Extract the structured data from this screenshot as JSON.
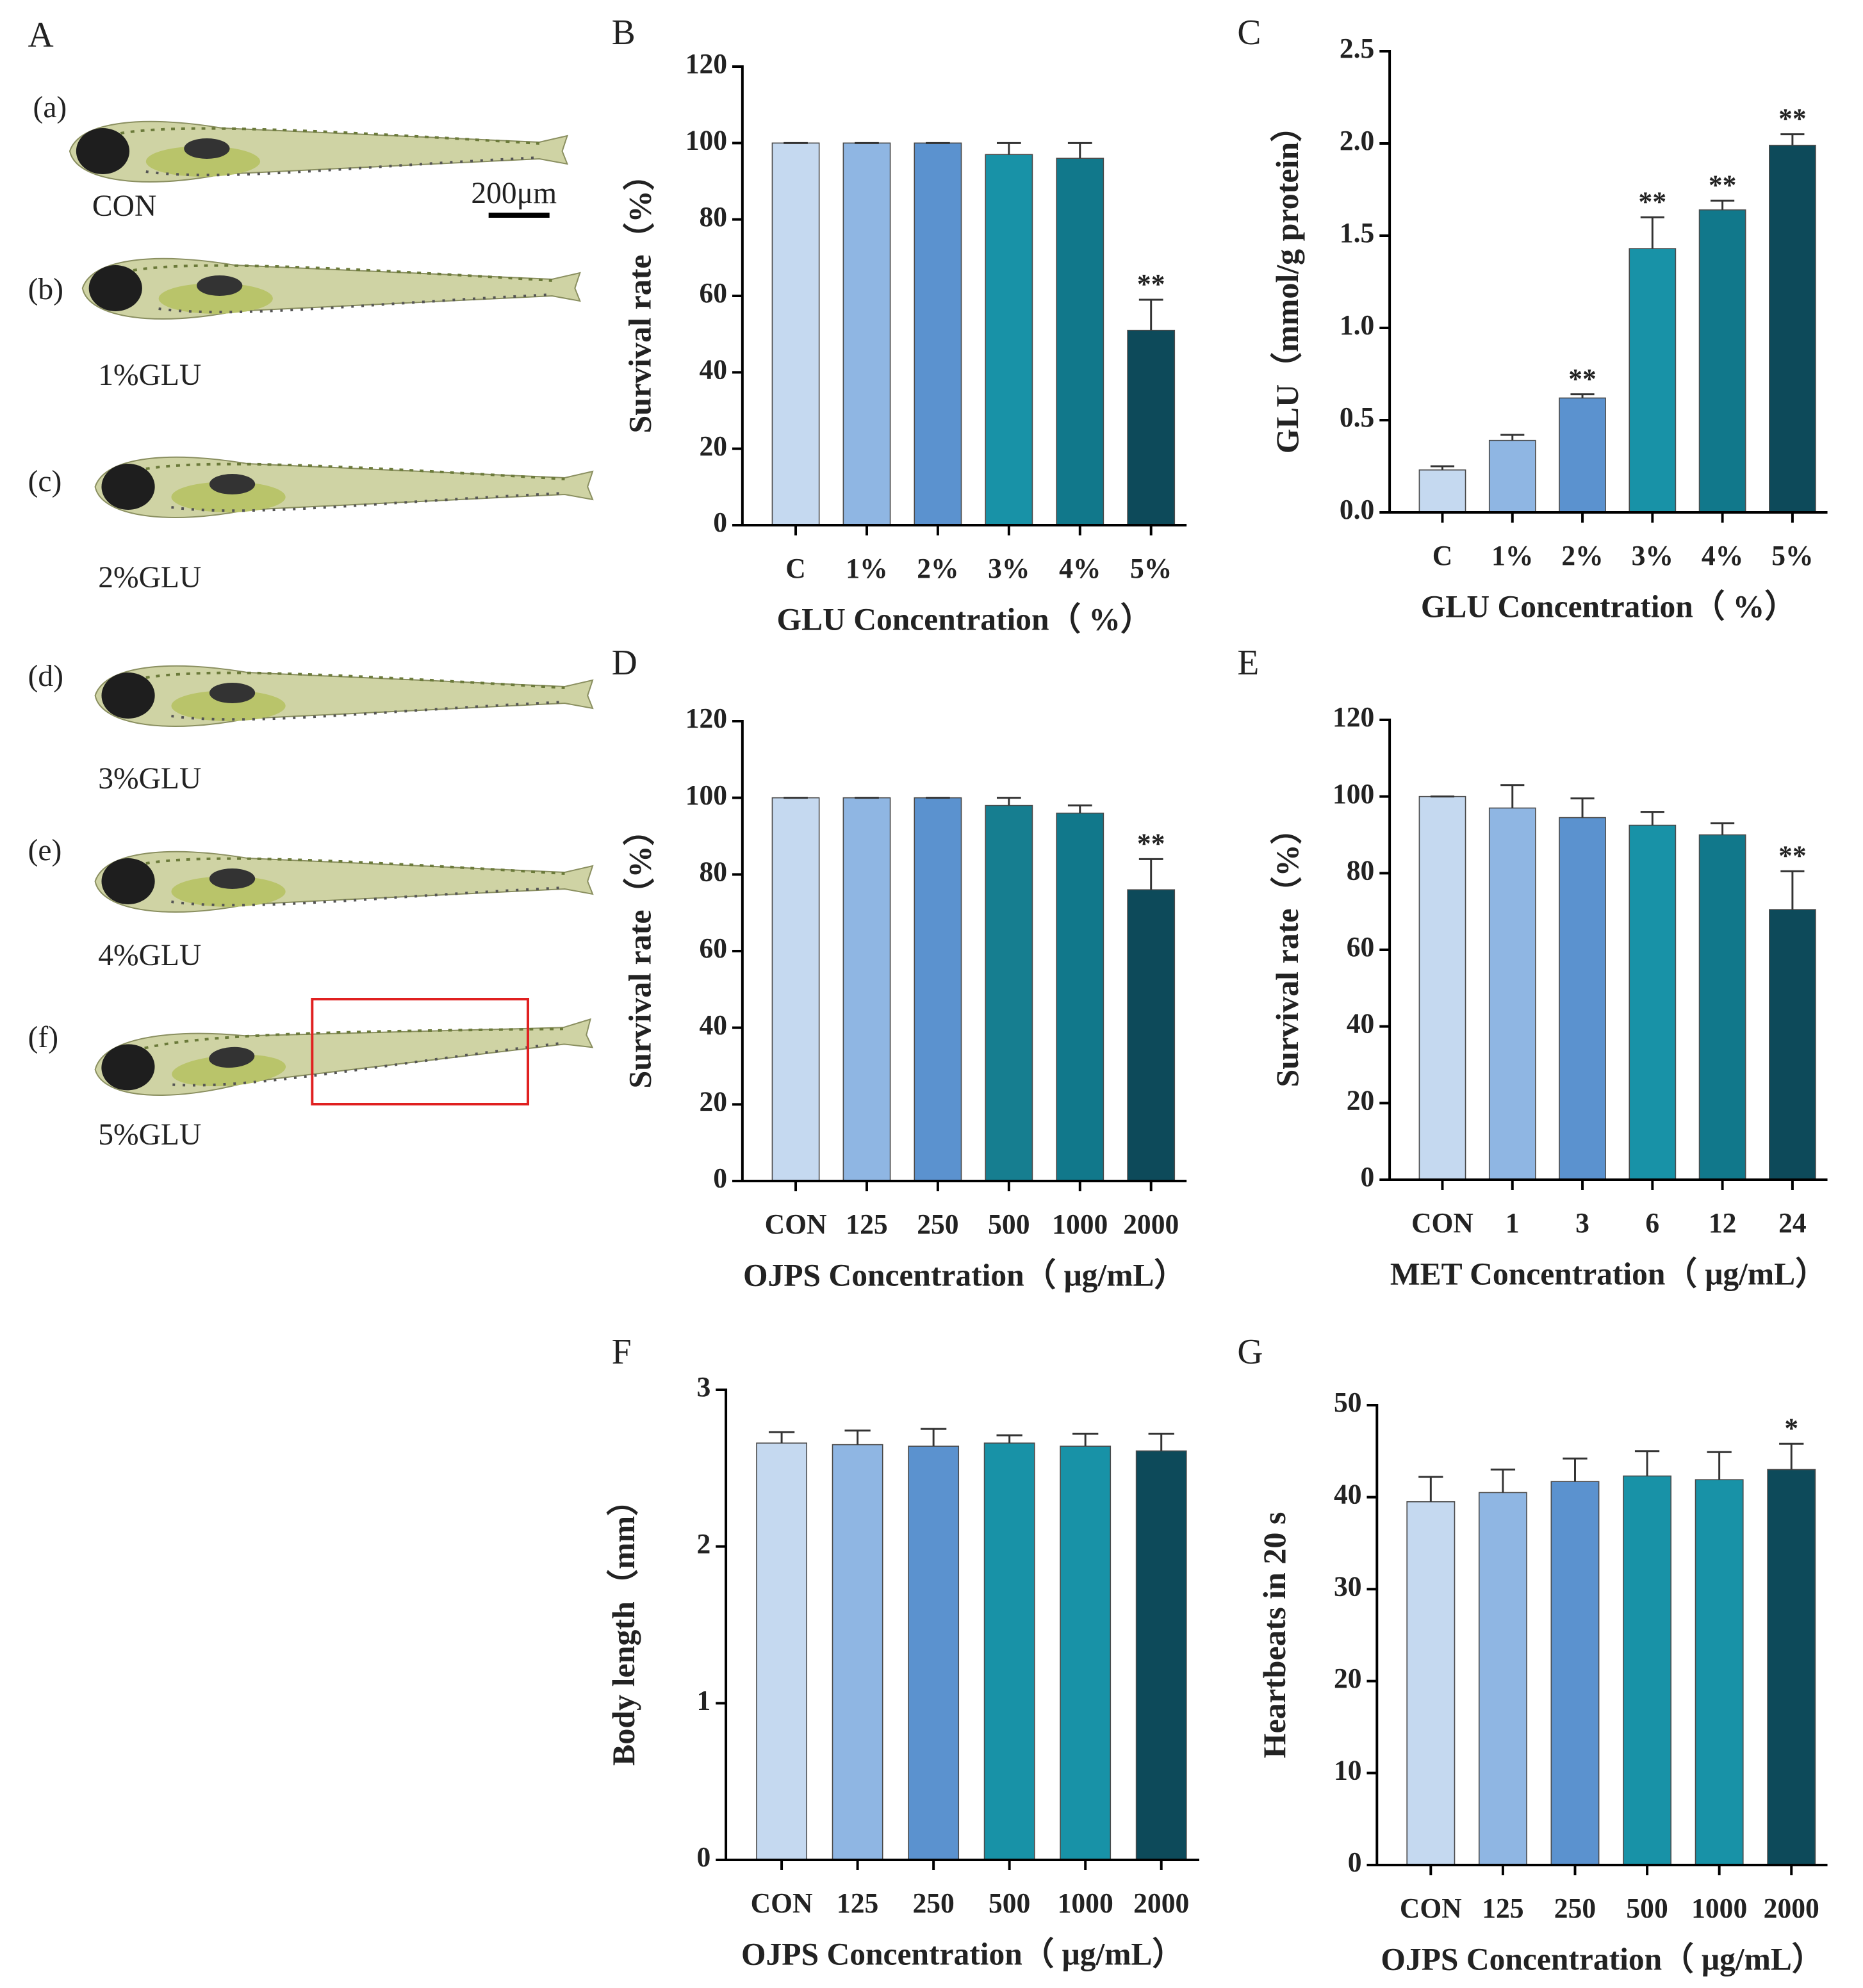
{
  "panel_a": {
    "panel": "A",
    "scale_bar": "200μm",
    "fish": [
      {
        "tag": "(a)",
        "label": "CON"
      },
      {
        "tag": "(b)",
        "label": "1%GLU"
      },
      {
        "tag": "(c)",
        "label": "2%GLU"
      },
      {
        "tag": "(d)",
        "label": "3%GLU"
      },
      {
        "tag": "(e)",
        "label": "4%GLU"
      },
      {
        "tag": "(f)",
        "label": "5%GLU"
      }
    ]
  },
  "chart_data": [
    {
      "type": "bar",
      "panel": "B",
      "y_label": "Survival rate（%）",
      "x_label": "GLU Concentration（ %）",
      "categories": [
        "C",
        "1%",
        "2%",
        "3%",
        "4%",
        "5%"
      ],
      "values": [
        100,
        100,
        100,
        97,
        96,
        51
      ],
      "errors": [
        0,
        0,
        0,
        3,
        4,
        8
      ],
      "annotations": [
        null,
        null,
        null,
        null,
        null,
        "**"
      ],
      "colors": [
        "#c5d9f0",
        "#8fb6e3",
        "#5b92cf",
        "#1892a7",
        "#11788b",
        "#0d4a5a"
      ],
      "ylim": [
        0,
        120
      ],
      "yticks": [
        0,
        20,
        40,
        60,
        80,
        100,
        120
      ]
    },
    {
      "type": "bar",
      "panel": "C",
      "y_label": "GLU（mmol/g protein）",
      "x_label": "GLU Concentration（ %）",
      "categories": [
        "C",
        "1%",
        "2%",
        "3%",
        "4%",
        "5%"
      ],
      "values": [
        0.23,
        0.39,
        0.62,
        1.43,
        1.64,
        1.99
      ],
      "errors": [
        0.02,
        0.03,
        0.02,
        0.17,
        0.05,
        0.06
      ],
      "annotations": [
        null,
        null,
        "**",
        "**",
        "**",
        "**"
      ],
      "colors": [
        "#c5d9f0",
        "#8fb6e3",
        "#5b92cf",
        "#1892a7",
        "#11788b",
        "#0d4a5a"
      ],
      "ylim": [
        0,
        2.5
      ],
      "yticks": [
        {
          "value": 0,
          "label": "0.0"
        },
        0.5,
        {
          "value": 1,
          "label": "1.0"
        },
        1.5,
        {
          "value": 2,
          "label": "2.0"
        },
        2.5
      ]
    },
    {
      "type": "bar",
      "panel": "D",
      "y_label": "Survival rate（%）",
      "x_label": "OJPS Concentration（ μg/mL）",
      "categories": [
        "CON",
        "125",
        "250",
        "500",
        "1000",
        "2000"
      ],
      "values": [
        100,
        100,
        100,
        98,
        96,
        76
      ],
      "errors": [
        0,
        0,
        0,
        2,
        2,
        8
      ],
      "annotations": [
        null,
        null,
        null,
        null,
        null,
        "**"
      ],
      "colors": [
        "#c5d9f0",
        "#8fb6e3",
        "#5b92cf",
        "#167e90",
        "#11788b",
        "#0d4a5a"
      ],
      "ylim": [
        0,
        120
      ],
      "yticks": [
        0,
        20,
        40,
        60,
        80,
        100,
        120
      ]
    },
    {
      "type": "bar",
      "panel": "E",
      "y_label": "Survival rate（%）",
      "x_label": "MET Concentration（ μg/mL）",
      "categories": [
        "CON",
        "1",
        "3",
        "6",
        "12",
        "24"
      ],
      "values": [
        100,
        97,
        94.5,
        92.5,
        90,
        70.5
      ],
      "errors": [
        0,
        6,
        5,
        3.5,
        3,
        10
      ],
      "annotations": [
        null,
        null,
        null,
        null,
        null,
        "**"
      ],
      "colors": [
        "#c5d9f0",
        "#8fb6e3",
        "#5b92cf",
        "#1892a7",
        "#11788b",
        "#0d4a5a"
      ],
      "ylim": [
        0,
        120
      ],
      "yticks": [
        0,
        20,
        40,
        60,
        80,
        100,
        120
      ]
    },
    {
      "type": "bar",
      "panel": "F",
      "y_label": "Body length（mm）",
      "x_label": "OJPS Concentration（ μg/mL）",
      "categories": [
        "CON",
        "125",
        "250",
        "500",
        "1000",
        "2000"
      ],
      "values": [
        2.66,
        2.65,
        2.64,
        2.66,
        2.64,
        2.61
      ],
      "errors": [
        0.07,
        0.09,
        0.11,
        0.05,
        0.08,
        0.11
      ],
      "annotations": [
        null,
        null,
        null,
        null,
        null,
        null
      ],
      "colors": [
        "#c5d9f0",
        "#8fb6e3",
        "#5b92cf",
        "#1892a7",
        "#1892a7",
        "#0d4a5a"
      ],
      "ylim": [
        0,
        3
      ],
      "yticks": [
        0,
        1,
        2,
        3
      ]
    },
    {
      "type": "bar",
      "panel": "G",
      "y_label": "Heartbeats in 20 s",
      "x_label": "OJPS Concentration（ μg/mL）",
      "categories": [
        "CON",
        "125",
        "250",
        "500",
        "1000",
        "2000"
      ],
      "values": [
        39.5,
        40.5,
        41.7,
        42.3,
        41.9,
        43
      ],
      "errors": [
        2.7,
        2.5,
        2.5,
        2.7,
        3,
        2.8
      ],
      "annotations": [
        null,
        null,
        null,
        null,
        null,
        "*"
      ],
      "colors": [
        "#c5d9f0",
        "#8fb6e3",
        "#5b92cf",
        "#1892a7",
        "#1892a7",
        "#0d4a5a"
      ],
      "ylim": [
        0,
        50
      ],
      "yticks": [
        0,
        10,
        20,
        30,
        40,
        50
      ]
    }
  ]
}
